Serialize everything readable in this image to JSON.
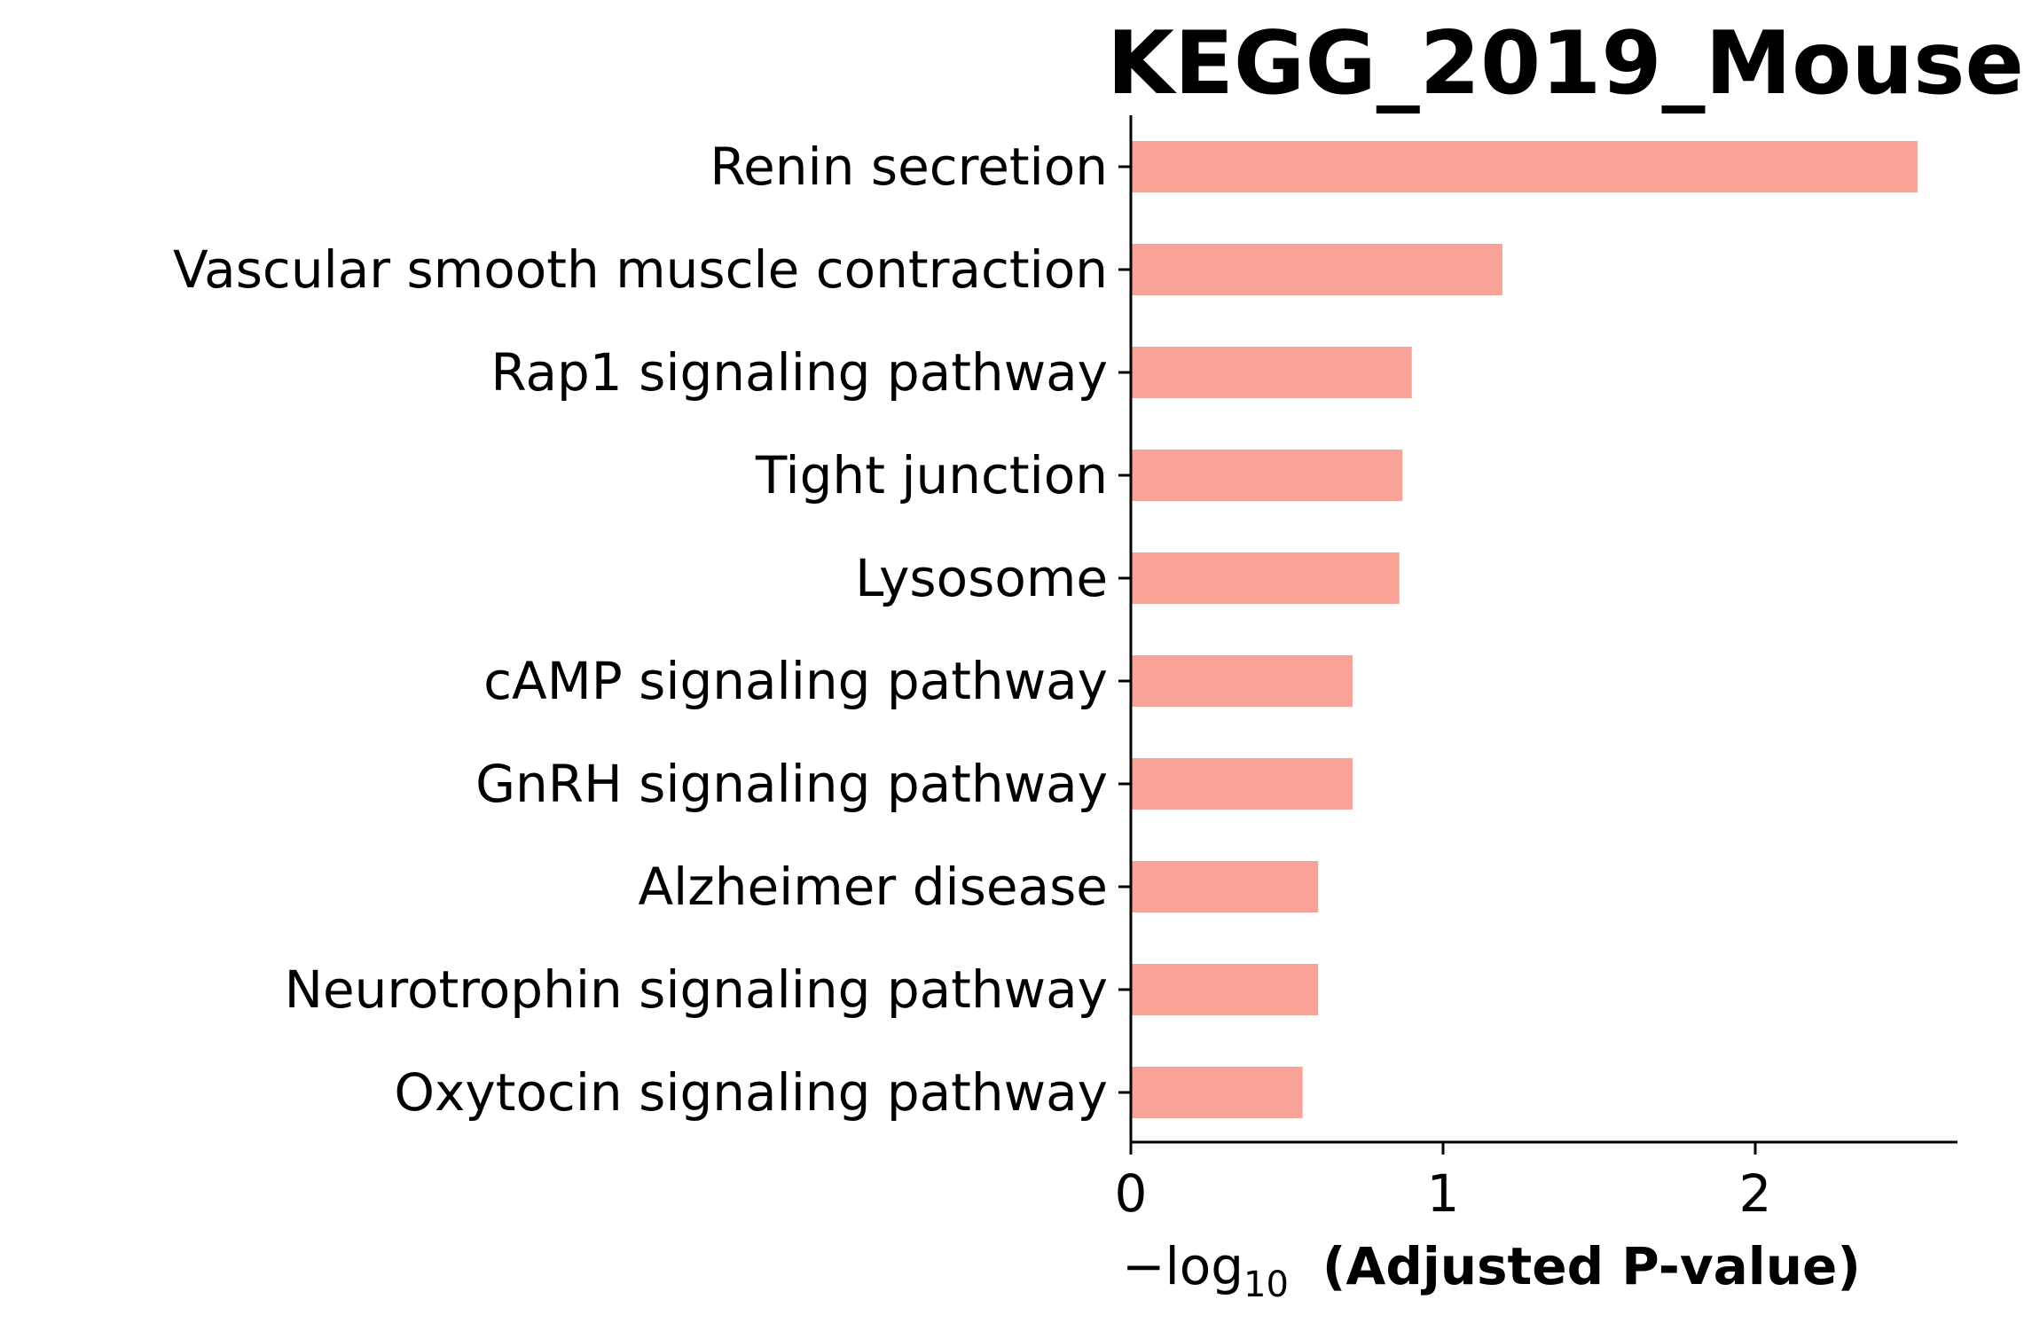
{
  "chart_data": {
    "type": "bar",
    "orientation": "horizontal",
    "title": "KEGG_2019_Mouse",
    "xlabel_prefix": "−log",
    "xlabel_subscript": "10",
    "xlabel_main": "(Adjusted P-value)",
    "ylabel": "",
    "categories": [
      "Renin secretion",
      "Vascular smooth muscle contraction",
      "Rap1 signaling pathway",
      "Tight junction",
      "Lysosome",
      "cAMP signaling pathway",
      "GnRH signaling pathway",
      "Alzheimer disease",
      "Neurotrophin signaling pathway",
      "Oxytocin signaling pathway"
    ],
    "values": [
      2.52,
      1.19,
      0.9,
      0.87,
      0.86,
      0.71,
      0.71,
      0.6,
      0.6,
      0.55
    ],
    "xlim": [
      0,
      2.65
    ],
    "xticks": [
      "0",
      "1",
      "2"
    ],
    "grid": false,
    "bar_color": "#F9A297",
    "legend": "none"
  }
}
